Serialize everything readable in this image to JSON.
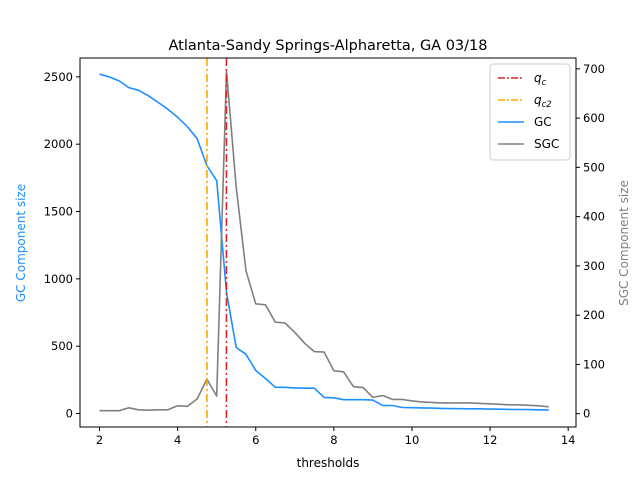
{
  "chart_data": {
    "type": "line",
    "title": "Atlanta-Sandy Springs-Alpharetta, GA 03/18",
    "xlabel": "thresholds",
    "ylabel_left": "GC Component size",
    "ylabel_right": "SGC Component size",
    "xlim": [
      1.5,
      14.2
    ],
    "ylim_left": [
      -100,
      2640
    ],
    "ylim_right": [
      -27,
      722
    ],
    "xticks": [
      2,
      4,
      6,
      8,
      10,
      12,
      14
    ],
    "yticks_left": [
      0,
      500,
      1000,
      1500,
      2000,
      2500
    ],
    "yticks_right": [
      0,
      100,
      200,
      300,
      400,
      500,
      600,
      700
    ],
    "grid": false,
    "legend_position": "top-right",
    "colors": {
      "qc": "#d62728",
      "qc2": "#ffa500",
      "gc": "#1f8fff",
      "sgc": "#808080",
      "left_label": "#1f8fff",
      "right_label": "#808080"
    },
    "legend": [
      {
        "key": "qc",
        "base": "q",
        "sub": "c",
        "style": "dashdot"
      },
      {
        "key": "qc2",
        "base": "q",
        "sub": "c2",
        "style": "dashdot"
      },
      {
        "key": "gc",
        "label": "GC",
        "style": "solid"
      },
      {
        "key": "sgc",
        "label": "SGC",
        "style": "solid"
      }
    ],
    "vlines": [
      {
        "key": "qc",
        "x": 5.25
      },
      {
        "key": "qc2",
        "x": 4.75
      }
    ],
    "series": [
      {
        "name": "GC",
        "axis": "left",
        "colorKey": "gc",
        "x": [
          2,
          2.25,
          2.5,
          2.75,
          3,
          3.25,
          3.5,
          3.75,
          4,
          4.25,
          4.5,
          4.75,
          5,
          5.25,
          5.5,
          5.75,
          6,
          6.25,
          6.5,
          6.75,
          7,
          7.25,
          7.5,
          7.75,
          8,
          8.25,
          8.5,
          8.75,
          9,
          9.25,
          9.5,
          9.75,
          10,
          10.25,
          10.5,
          10.75,
          11,
          11.25,
          11.5,
          11.75,
          12,
          12.25,
          12.5,
          12.75,
          13,
          13.25,
          13.5
        ],
        "y": [
          2520,
          2500,
          2470,
          2420,
          2400,
          2360,
          2310,
          2260,
          2200,
          2130,
          2040,
          1840,
          1730,
          900,
          490,
          440,
          320,
          260,
          195,
          195,
          190,
          188,
          188,
          120,
          117,
          103,
          103,
          103,
          100,
          60,
          60,
          45,
          43,
          42,
          40,
          38,
          37,
          36,
          35,
          35,
          33,
          32,
          31,
          30,
          29,
          28,
          27
        ]
      },
      {
        "name": "SGC",
        "axis": "right",
        "colorKey": "sgc",
        "x": [
          2,
          2.25,
          2.5,
          2.75,
          3,
          3.25,
          3.5,
          3.75,
          4,
          4.25,
          4.5,
          4.75,
          5,
          5.25,
          5.5,
          5.75,
          6,
          6.25,
          6.5,
          6.75,
          7,
          7.25,
          7.5,
          7.75,
          8,
          8.25,
          8.5,
          8.75,
          9,
          9.25,
          9.5,
          9.75,
          10,
          10.25,
          10.5,
          10.75,
          11,
          11.25,
          11.5,
          11.75,
          12,
          12.25,
          12.5,
          12.75,
          13,
          13.25,
          13.5
        ],
        "y": [
          6,
          6,
          6,
          12,
          8,
          7,
          8,
          8,
          16,
          15,
          30,
          70,
          36,
          695,
          460,
          290,
          223,
          221,
          186,
          184,
          165,
          143,
          126,
          125,
          87,
          85,
          55,
          53,
          33,
          37,
          29,
          29,
          26,
          24,
          23,
          22,
          22,
          22,
          22,
          21,
          20,
          19,
          18,
          18,
          17,
          16,
          14
        ]
      }
    ]
  }
}
